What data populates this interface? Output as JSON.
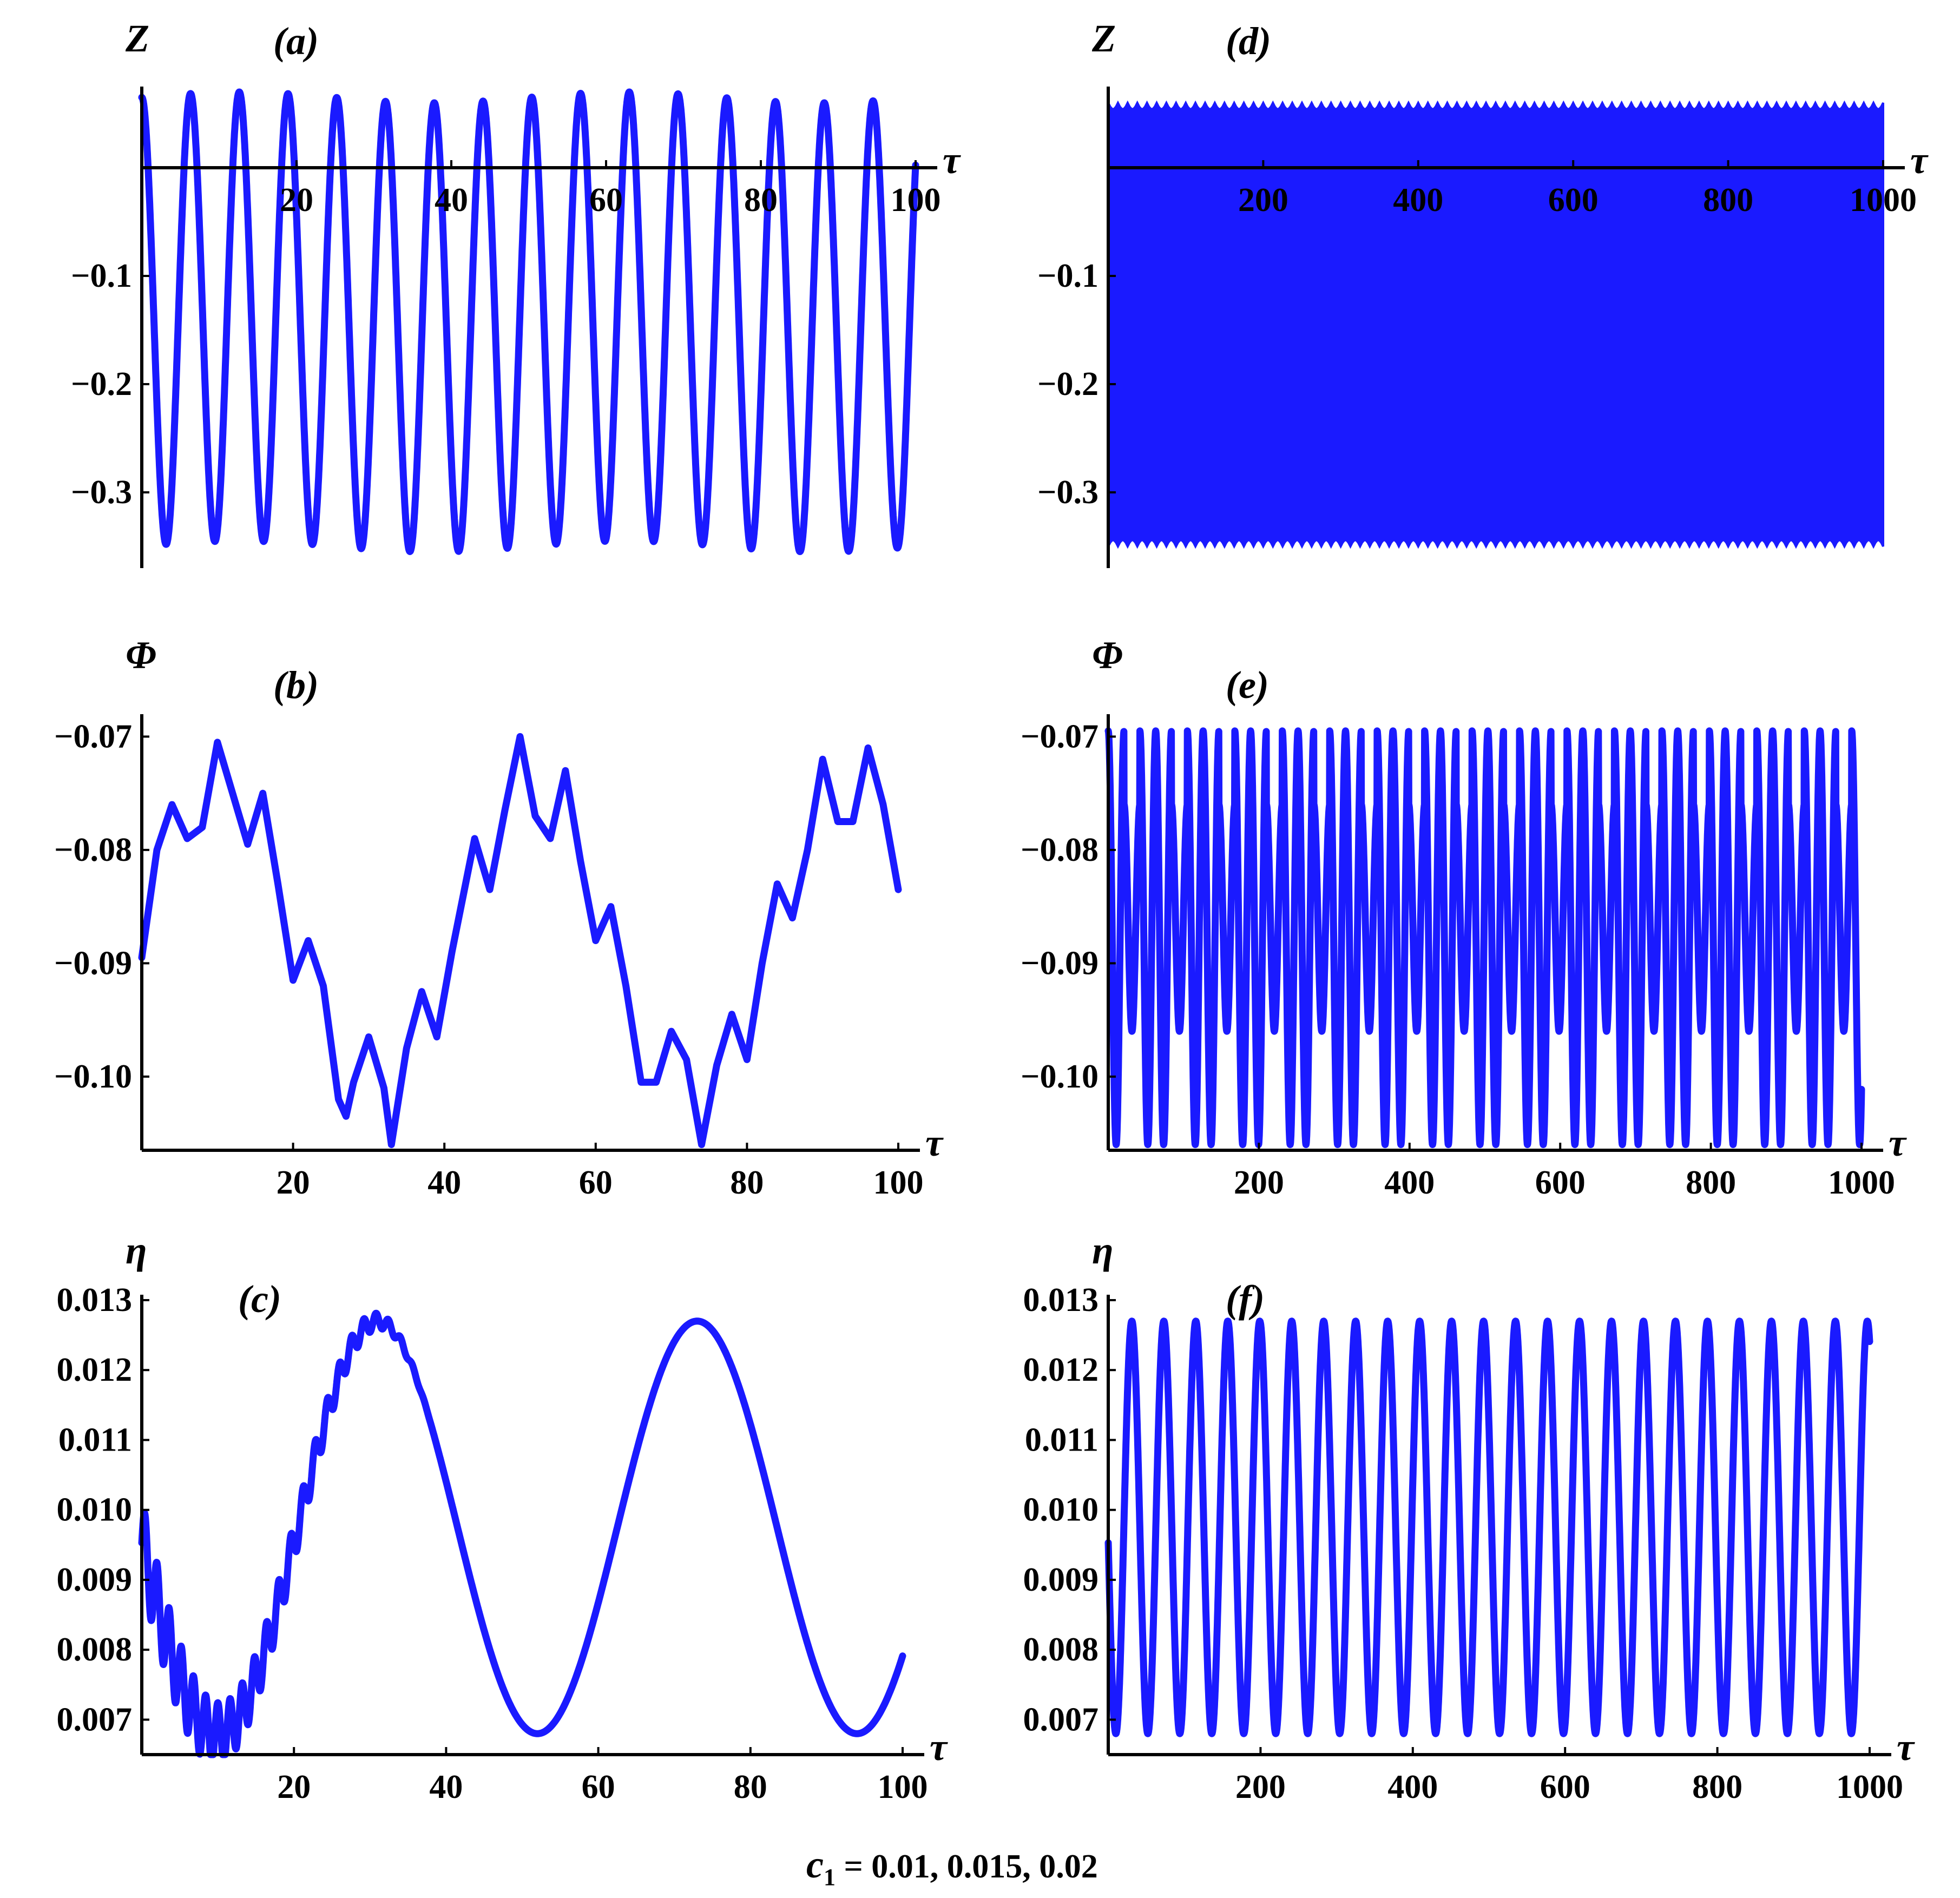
{
  "caption": {
    "prefix": "c",
    "subscript": "1",
    "values": " = 0.01, 0.015, 0.02"
  },
  "chart_data": [
    {
      "id": "a",
      "panel_label": "(a)",
      "type": "line",
      "ylabel": "Z",
      "xlabel": "τ",
      "xlim": [
        0,
        100
      ],
      "ylim": [
        -0.37,
        0.07
      ],
      "xticks": [
        20,
        40,
        60,
        80,
        100
      ],
      "yticks": [
        -0.1,
        -0.2,
        -0.3
      ],
      "ytick_labels": [
        "−0.1",
        "−0.2",
        "−0.3"
      ],
      "xaxis_at": 0,
      "color": "#1a1aff",
      "series": [
        {
          "kind": "sine",
          "x_start": 0,
          "x_end": 100,
          "period": 6.3,
          "phase_max_at": 0,
          "max": 0.065,
          "min": -0.35,
          "secondary_period": 50,
          "secondary_amp": 0.005
        }
      ]
    },
    {
      "id": "d",
      "panel_label": "(d)",
      "type": "line",
      "ylabel": "Z",
      "xlabel": "τ",
      "xlim": [
        0,
        1000
      ],
      "ylim": [
        -0.37,
        0.07
      ],
      "xticks": [
        200,
        400,
        600,
        800,
        1000
      ],
      "yticks": [
        -0.1,
        -0.2,
        -0.3
      ],
      "ytick_labels": [
        "−0.1",
        "−0.2",
        "−0.3"
      ],
      "xaxis_at": 0,
      "color": "#1a1aff",
      "series": [
        {
          "kind": "envelope",
          "x_start": 0,
          "x_end": 1000,
          "max": 0.06,
          "min": -0.35,
          "ripple_period": 25,
          "ripple_amp": 0.006
        }
      ]
    },
    {
      "id": "b",
      "panel_label": "(b)",
      "type": "line",
      "ylabel": "Φ",
      "xlabel": "τ",
      "xlim": [
        0,
        100
      ],
      "ylim": [
        -0.1065,
        -0.0685
      ],
      "xticks": [
        20,
        40,
        60,
        80,
        100
      ],
      "yticks": [
        -0.07,
        -0.08,
        -0.09,
        -0.1
      ],
      "ytick_labels": [
        "−0.07",
        "−0.08",
        "−0.09",
        "−0.10"
      ],
      "xaxis_at": -0.1065,
      "color": "#1a1aff",
      "series": [
        {
          "kind": "points",
          "x": [
            0,
            2,
            4,
            6,
            8,
            10,
            12,
            14,
            16,
            18,
            20,
            22,
            24,
            26,
            27,
            28,
            30,
            32,
            33,
            35,
            37,
            39,
            41,
            44,
            46,
            48,
            50,
            52,
            54,
            56,
            58,
            60,
            62,
            64,
            66,
            68,
            70,
            72,
            74,
            76,
            78,
            80,
            82,
            84,
            86,
            88,
            90,
            92,
            94,
            96,
            98,
            100
          ],
          "y": [
            -0.0895,
            -0.08,
            -0.076,
            -0.079,
            -0.078,
            -0.0705,
            -0.075,
            -0.0795,
            -0.075,
            -0.083,
            -0.0915,
            -0.088,
            -0.092,
            -0.102,
            -0.1035,
            -0.1005,
            -0.0965,
            -0.101,
            -0.106,
            -0.0975,
            -0.0925,
            -0.0965,
            -0.089,
            -0.079,
            -0.0835,
            -0.0765,
            -0.07,
            -0.077,
            -0.079,
            -0.073,
            -0.081,
            -0.088,
            -0.085,
            -0.092,
            -0.1005,
            -0.1005,
            -0.096,
            -0.0985,
            -0.106,
            -0.099,
            -0.0945,
            -0.0985,
            -0.09,
            -0.083,
            -0.086,
            -0.08,
            -0.072,
            -0.0775,
            -0.0775,
            -0.071,
            -0.076,
            -0.0835
          ]
        }
      ]
    },
    {
      "id": "e",
      "panel_label": "(e)",
      "type": "line",
      "ylabel": "Φ",
      "xlabel": "τ",
      "xlim": [
        0,
        1000
      ],
      "ylim": [
        -0.1065,
        -0.0685
      ],
      "xticks": [
        200,
        400,
        600,
        800,
        1000
      ],
      "yticks": [
        -0.07,
        -0.08,
        -0.09,
        -0.1
      ],
      "ytick_labels": [
        "−0.07",
        "−0.08",
        "−0.09",
        "−0.10"
      ],
      "xaxis_at": -0.1065,
      "color": "#1a1aff",
      "series": [
        {
          "kind": "oscillation",
          "x_start": 0,
          "x_end": 1000,
          "period": 21,
          "max": -0.0695,
          "min": -0.106,
          "alt_max": -0.076,
          "alt_min": -0.096
        }
      ]
    },
    {
      "id": "c",
      "panel_label": "(c)",
      "type": "line",
      "ylabel": "η",
      "xlabel": "τ",
      "xlim": [
        0,
        100
      ],
      "ylim": [
        0.0065,
        0.013
      ],
      "xticks": [
        20,
        40,
        60,
        80,
        100
      ],
      "yticks": [
        0.007,
        0.008,
        0.009,
        0.01,
        0.011,
        0.012,
        0.013
      ],
      "ytick_labels": [
        "0.007",
        "0.008",
        "0.009",
        "0.010",
        "0.011",
        "0.012",
        "0.013"
      ],
      "xaxis_at": 0.0065,
      "color": "#1a1aff",
      "series": [
        {
          "kind": "sine",
          "x_start": 0,
          "x_end": 100,
          "period": 42,
          "phase_max_at": 31,
          "max": 0.0127,
          "min": 0.0068,
          "ripple_period": 1.6,
          "ripple_amp": 0.0006,
          "ripple_decay_end": 38
        }
      ]
    },
    {
      "id": "f",
      "panel_label": "(f)",
      "type": "line",
      "ylabel": "η",
      "xlabel": "τ",
      "xlim": [
        0,
        1000
      ],
      "ylim": [
        0.0065,
        0.013
      ],
      "xticks": [
        200,
        400,
        600,
        800,
        1000
      ],
      "yticks": [
        0.007,
        0.008,
        0.009,
        0.01,
        0.011,
        0.012,
        0.013
      ],
      "ytick_labels": [
        "0.007",
        "0.008",
        "0.009",
        "0.010",
        "0.011",
        "0.012",
        "0.013"
      ],
      "xaxis_at": 0.0065,
      "color": "#1a1aff",
      "series": [
        {
          "kind": "sine",
          "x_start": 0,
          "x_end": 1000,
          "period": 42,
          "phase_max_at": 31,
          "max": 0.0127,
          "min": 0.0068
        }
      ]
    }
  ]
}
